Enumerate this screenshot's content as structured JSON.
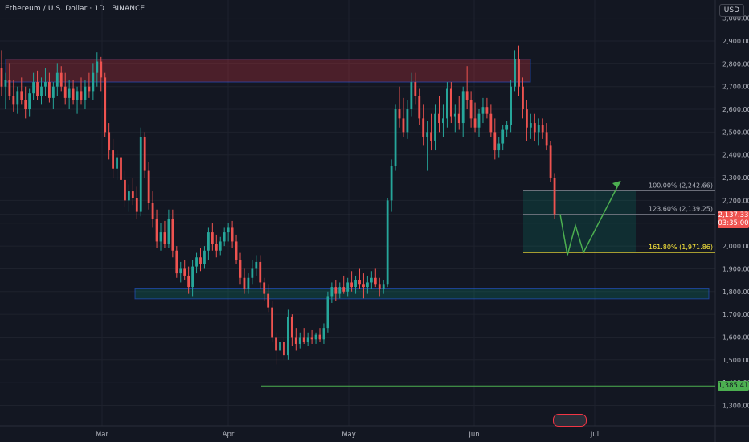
{
  "header": {
    "symbol_title": "Ethereum / U.S. Dollar · 1D · BINANCE",
    "currency": "USD"
  },
  "colors": {
    "background": "#131722",
    "up": "#26a69a",
    "down": "#ef5350",
    "resistance_zone": "#f23645",
    "support_zone": "#089981",
    "projection": "#4caf50",
    "fib_line": "#787b86",
    "target_line": "#ffeb3b",
    "low_line": "#4caf50"
  },
  "chart_data": {
    "type": "candlestick",
    "title": "Ethereum / U.S. Dollar · 1D · BINANCE",
    "ylim": [
      1210,
      3080
    ],
    "yticks": [
      3000,
      2900,
      2800,
      2700,
      2600,
      2500,
      2400,
      2300,
      2200,
      2100,
      2000,
      1900,
      1800,
      1700,
      1600,
      1500,
      1400,
      1300
    ],
    "ytick_labels": [
      "3,000.00",
      "2,900.00",
      "2,800.00",
      "2,700.00",
      "2,600.00",
      "2,500.00",
      "2,400.00",
      "2,300.00",
      "2,200.00",
      "2,100.00",
      "2,000.00",
      "1,900.00",
      "1,800.00",
      "1,700.00",
      "1,600.00",
      "1,500.00",
      "1,400.00",
      "1,300.00"
    ],
    "xlabels": [
      "Mar",
      "Apr",
      "May",
      "Jun",
      "Jul"
    ],
    "candle_count": 140,
    "candles": [
      [
        2780,
        2860,
        2660,
        2700
      ],
      [
        2700,
        2760,
        2600,
        2730
      ],
      [
        2730,
        2800,
        2640,
        2660
      ],
      [
        2660,
        2730,
        2590,
        2620
      ],
      [
        2620,
        2700,
        2580,
        2680
      ],
      [
        2680,
        2740,
        2620,
        2640
      ],
      [
        2640,
        2700,
        2560,
        2600
      ],
      [
        2600,
        2690,
        2570,
        2670
      ],
      [
        2670,
        2760,
        2640,
        2720
      ],
      [
        2720,
        2770,
        2640,
        2660
      ],
      [
        2660,
        2740,
        2620,
        2700
      ],
      [
        2700,
        2780,
        2660,
        2720
      ],
      [
        2720,
        2760,
        2630,
        2650
      ],
      [
        2650,
        2720,
        2600,
        2700
      ],
      [
        2700,
        2800,
        2660,
        2760
      ],
      [
        2760,
        2790,
        2680,
        2700
      ],
      [
        2700,
        2760,
        2620,
        2650
      ],
      [
        2650,
        2730,
        2600,
        2690
      ],
      [
        2690,
        2730,
        2620,
        2640
      ],
      [
        2640,
        2700,
        2580,
        2680
      ],
      [
        2680,
        2740,
        2620,
        2640
      ],
      [
        2640,
        2730,
        2600,
        2700
      ],
      [
        2700,
        2760,
        2650,
        2680
      ],
      [
        2680,
        2800,
        2640,
        2760
      ],
      [
        2760,
        2850,
        2700,
        2810
      ],
      [
        2810,
        2830,
        2680,
        2740
      ],
      [
        2740,
        2760,
        2480,
        2500
      ],
      [
        2500,
        2540,
        2380,
        2420
      ],
      [
        2420,
        2470,
        2300,
        2340
      ],
      [
        2340,
        2420,
        2290,
        2390
      ],
      [
        2390,
        2420,
        2260,
        2290
      ],
      [
        2290,
        2330,
        2170,
        2200
      ],
      [
        2200,
        2270,
        2150,
        2240
      ],
      [
        2240,
        2300,
        2180,
        2210
      ],
      [
        2210,
        2260,
        2120,
        2150
      ],
      [
        2150,
        2520,
        2130,
        2480
      ],
      [
        2480,
        2500,
        2300,
        2330
      ],
      [
        2330,
        2370,
        2160,
        2190
      ],
      [
        2190,
        2240,
        2080,
        2120
      ],
      [
        2120,
        2160,
        1990,
        2020
      ],
      [
        2020,
        2100,
        1980,
        2060
      ],
      [
        2060,
        2110,
        1990,
        2010
      ],
      [
        2010,
        2160,
        1990,
        2120
      ],
      [
        2120,
        2160,
        1950,
        1980
      ],
      [
        1980,
        2000,
        1860,
        1880
      ],
      [
        1880,
        1930,
        1840,
        1900
      ],
      [
        1900,
        1940,
        1850,
        1870
      ],
      [
        1870,
        1910,
        1790,
        1820
      ],
      [
        1820,
        1940,
        1780,
        1910
      ],
      [
        1910,
        1970,
        1880,
        1950
      ],
      [
        1950,
        1990,
        1890,
        1920
      ],
      [
        1920,
        2000,
        1900,
        1980
      ],
      [
        1980,
        2080,
        1940,
        2060
      ],
      [
        2060,
        2100,
        1980,
        2010
      ],
      [
        2010,
        2050,
        1950,
        1980
      ],
      [
        1980,
        2040,
        1960,
        2020
      ],
      [
        2020,
        2080,
        2000,
        2060
      ],
      [
        2060,
        2100,
        2020,
        2080
      ],
      [
        2080,
        2110,
        1990,
        2020
      ],
      [
        2020,
        2050,
        1920,
        1940
      ],
      [
        1940,
        1970,
        1830,
        1860
      ],
      [
        1860,
        1900,
        1790,
        1810
      ],
      [
        1810,
        1880,
        1790,
        1860
      ],
      [
        1860,
        1940,
        1830,
        1900
      ],
      [
        1900,
        1960,
        1870,
        1930
      ],
      [
        1930,
        1960,
        1810,
        1840
      ],
      [
        1840,
        1860,
        1760,
        1790
      ],
      [
        1790,
        1830,
        1710,
        1730
      ],
      [
        1730,
        1760,
        1580,
        1600
      ],
      [
        1600,
        1620,
        1480,
        1540
      ],
      [
        1540,
        1600,
        1450,
        1580
      ],
      [
        1580,
        1600,
        1500,
        1520
      ],
      [
        1520,
        1720,
        1500,
        1690
      ],
      [
        1690,
        1700,
        1560,
        1600
      ],
      [
        1600,
        1640,
        1540,
        1570
      ],
      [
        1570,
        1620,
        1550,
        1600
      ],
      [
        1600,
        1640,
        1570,
        1580
      ],
      [
        1580,
        1620,
        1560,
        1600
      ],
      [
        1600,
        1630,
        1570,
        1590
      ],
      [
        1590,
        1620,
        1570,
        1610
      ],
      [
        1610,
        1640,
        1580,
        1590
      ],
      [
        1590,
        1660,
        1570,
        1640
      ],
      [
        1640,
        1800,
        1620,
        1780
      ],
      [
        1780,
        1840,
        1750,
        1820
      ],
      [
        1820,
        1850,
        1760,
        1790
      ],
      [
        1790,
        1840,
        1770,
        1820
      ],
      [
        1820,
        1870,
        1790,
        1800
      ],
      [
        1800,
        1860,
        1780,
        1840
      ],
      [
        1840,
        1890,
        1800,
        1820
      ],
      [
        1820,
        1870,
        1790,
        1850
      ],
      [
        1850,
        1900,
        1810,
        1830
      ],
      [
        1830,
        1880,
        1770,
        1820
      ],
      [
        1820,
        1870,
        1790,
        1840
      ],
      [
        1840,
        1890,
        1810,
        1860
      ],
      [
        1860,
        1900,
        1820,
        1830
      ],
      [
        1830,
        1860,
        1780,
        1810
      ],
      [
        1810,
        1850,
        1790,
        1830
      ],
      [
        1830,
        2210,
        1820,
        2200
      ],
      [
        2200,
        2380,
        2150,
        2350
      ],
      [
        2350,
        2620,
        2330,
        2600
      ],
      [
        2600,
        2700,
        2520,
        2560
      ],
      [
        2560,
        2650,
        2480,
        2500
      ],
      [
        2500,
        2640,
        2470,
        2600
      ],
      [
        2600,
        2760,
        2570,
        2720
      ],
      [
        2720,
        2760,
        2620,
        2660
      ],
      [
        2660,
        2690,
        2530,
        2560
      ],
      [
        2560,
        2620,
        2440,
        2480
      ],
      [
        2480,
        2550,
        2330,
        2500
      ],
      [
        2500,
        2580,
        2420,
        2460
      ],
      [
        2460,
        2620,
        2420,
        2580
      ],
      [
        2580,
        2660,
        2500,
        2540
      ],
      [
        2540,
        2620,
        2480,
        2560
      ],
      [
        2560,
        2720,
        2520,
        2690
      ],
      [
        2690,
        2720,
        2540,
        2570
      ],
      [
        2570,
        2620,
        2500,
        2580
      ],
      [
        2580,
        2660,
        2510,
        2540
      ],
      [
        2540,
        2700,
        2480,
        2680
      ],
      [
        2680,
        2790,
        2600,
        2640
      ],
      [
        2640,
        2680,
        2520,
        2560
      ],
      [
        2560,
        2630,
        2500,
        2520
      ],
      [
        2520,
        2600,
        2480,
        2580
      ],
      [
        2580,
        2650,
        2540,
        2610
      ],
      [
        2610,
        2650,
        2560,
        2580
      ],
      [
        2580,
        2620,
        2480,
        2500
      ],
      [
        2500,
        2560,
        2380,
        2420
      ],
      [
        2420,
        2480,
        2390,
        2450
      ],
      [
        2450,
        2530,
        2420,
        2510
      ],
      [
        2510,
        2550,
        2480,
        2530
      ],
      [
        2530,
        2730,
        2500,
        2700
      ],
      [
        2700,
        2860,
        2680,
        2820
      ],
      [
        2820,
        2880,
        2660,
        2700
      ],
      [
        2700,
        2740,
        2560,
        2600
      ],
      [
        2600,
        2640,
        2460,
        2520
      ],
      [
        2520,
        2580,
        2470,
        2540
      ],
      [
        2540,
        2580,
        2460,
        2500
      ],
      [
        2500,
        2560,
        2440,
        2530
      ],
      [
        2530,
        2560,
        2470,
        2500
      ],
      [
        2500,
        2540,
        2420,
        2440
      ],
      [
        2440,
        2460,
        2280,
        2300
      ],
      [
        2300,
        2320,
        2120,
        2140
      ]
    ],
    "zones": [
      {
        "name": "resistance",
        "y_top": 2820,
        "y_bottom": 2720
      },
      {
        "name": "support",
        "y_top": 1815,
        "y_bottom": 1768
      }
    ],
    "fib_box": {
      "y_top": 2242.66,
      "y_bottom": 1971.86
    },
    "fib_levels": [
      {
        "label": "100.00% (2,242.66)",
        "value": 2242.66
      },
      {
        "label": "123.60% (2,139.25)",
        "value": 2139.25
      },
      {
        "label": "161.80% (1,971.86)",
        "value": 1971.86
      }
    ],
    "projection_path": [
      2139.25,
      1960,
      2090,
      1971.86,
      2286
    ],
    "current_price": {
      "value": 2137.33,
      "label": "2,137.33",
      "countdown": "03:35:00"
    },
    "low_level": {
      "value": 1385.41,
      "label": "1,385.41"
    }
  }
}
